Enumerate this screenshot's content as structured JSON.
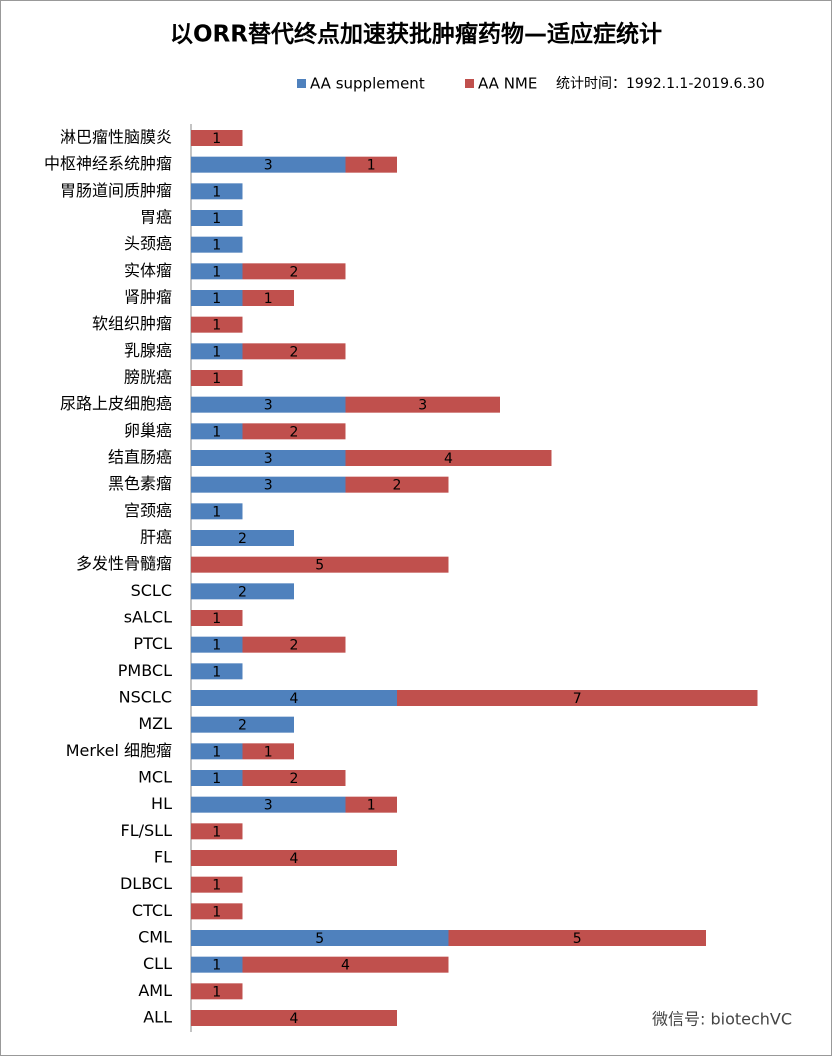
{
  "chart_data": {
    "type": "stacked_barh",
    "title": "以ORR替代终点加速获批肿瘤药物—适应症统计",
    "note": "统计时间：1992.1.1-2019.6.30",
    "watermark": "微信号: biotechVC",
    "categories": [
      "淋巴瘤性脑膜炎",
      "中枢神经系统肿瘤",
      "胃肠道间质肿瘤",
      "胃癌",
      "头颈癌",
      "实体瘤",
      "肾肿瘤",
      "软组织肿瘤",
      "乳腺癌",
      "膀胱癌",
      "尿路上皮细胞癌",
      "卵巢癌",
      "结直肠癌",
      "黑色素瘤",
      "宫颈癌",
      "肝癌",
      "多发性骨髓瘤",
      "SCLC",
      "sALCL",
      "PTCL",
      "PMBCL",
      "NSCLC",
      "MZL",
      "Merkel 细胞瘤",
      "MCL",
      "HL",
      "FL/SLL",
      "FL",
      "DLBCL",
      "CTCL",
      "CML",
      "CLL",
      "AML",
      "ALL"
    ],
    "series": [
      {
        "name": "AA  supplement",
        "color": "#4f81bd",
        "values": [
          null,
          3,
          1,
          1,
          1,
          1,
          1,
          null,
          1,
          null,
          3,
          1,
          3,
          3,
          1,
          2,
          null,
          2,
          null,
          1,
          1,
          4,
          2,
          1,
          1,
          3,
          null,
          null,
          null,
          null,
          5,
          1,
          null,
          null
        ]
      },
      {
        "name": "AA NME",
        "color": "#c0504d",
        "values": [
          1,
          1,
          null,
          null,
          null,
          2,
          1,
          1,
          2,
          1,
          3,
          2,
          4,
          2,
          null,
          null,
          5,
          null,
          1,
          2,
          null,
          7,
          null,
          1,
          2,
          1,
          1,
          4,
          1,
          1,
          5,
          4,
          1,
          4
        ]
      }
    ],
    "legend": "top"
  }
}
